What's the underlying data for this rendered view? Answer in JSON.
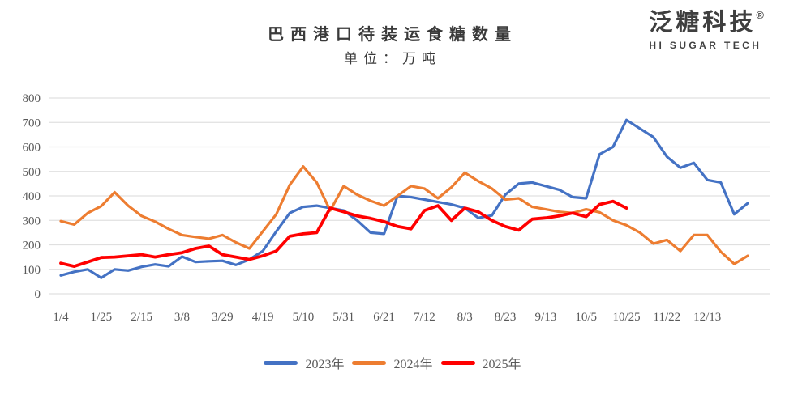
{
  "header": {
    "title": "巴西港口待装运食糖数量",
    "subtitle": "单位：万吨"
  },
  "logo": {
    "name": "泛糖科技",
    "registered": "®",
    "tagline": "HI SUGAR TECH"
  },
  "chart_data": {
    "type": "line",
    "title": "巴西港口待装运食糖数量",
    "subtitle": "单位：万吨",
    "xlabel": "",
    "ylabel": "",
    "ylim": [
      0,
      800
    ],
    "y_step": 100,
    "grid": true,
    "legend_position": "bottom",
    "x_tick_labels": [
      "1/4",
      "1/25",
      "2/15",
      "3/8",
      "3/29",
      "4/19",
      "5/10",
      "5/31",
      "6/21",
      "7/12",
      "8/3",
      "8/23",
      "9/13",
      "10/5",
      "10/25",
      "11/22",
      "12/13"
    ],
    "x_unit": "week",
    "series": [
      {
        "name": "2023年",
        "color": "#4472C4",
        "values": [
          75,
          90,
          100,
          65,
          100,
          95,
          110,
          120,
          112,
          152,
          130,
          133,
          135,
          118,
          140,
          175,
          255,
          330,
          355,
          360,
          350,
          340,
          300,
          250,
          245,
          400,
          395,
          385,
          375,
          365,
          350,
          310,
          320,
          405,
          450,
          455,
          440,
          425,
          395,
          390,
          570,
          600,
          710,
          675,
          640,
          560,
          515,
          535,
          465,
          455,
          325,
          370
        ]
      },
      {
        "name": "2024年",
        "color": "#ED7D31",
        "values": [
          297,
          283,
          330,
          358,
          415,
          360,
          318,
          295,
          265,
          240,
          232,
          225,
          240,
          210,
          185,
          255,
          325,
          445,
          520,
          455,
          340,
          440,
          405,
          380,
          360,
          400,
          440,
          430,
          390,
          435,
          495,
          460,
          430,
          385,
          390,
          355,
          345,
          335,
          330,
          345,
          333,
          300,
          280,
          250,
          205,
          220,
          175,
          240,
          240,
          172,
          122,
          155
        ]
      },
      {
        "name": "2025年",
        "color": "#FF0000",
        "values": [
          125,
          112,
          130,
          148,
          150,
          155,
          160,
          150,
          160,
          168,
          185,
          195,
          160,
          150,
          140,
          155,
          175,
          235,
          245,
          250,
          350,
          335,
          318,
          308,
          295,
          275,
          265,
          340,
          360,
          300,
          350,
          335,
          300,
          275,
          260,
          305,
          310,
          318,
          330,
          315,
          365,
          378,
          350
        ]
      }
    ]
  }
}
